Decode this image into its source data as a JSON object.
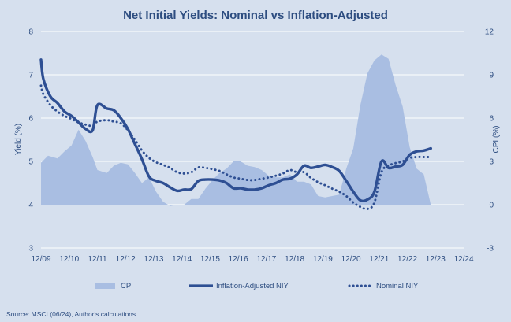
{
  "chart_data": {
    "type": "line",
    "title": "Net Initial Yields: Nominal vs Inflation-Adjusted",
    "source": "Source: MSCI (06/24), Author's calculations",
    "x_tick_labels": [
      "12/09",
      "12/10",
      "12/11",
      "12/12",
      "12/13",
      "12/14",
      "12/15",
      "12/16",
      "12/17",
      "12/18",
      "12/19",
      "12/20",
      "12/21",
      "12/22",
      "12/23",
      "12/24"
    ],
    "xlim": [
      2009.917,
      2024.917
    ],
    "left_axis": {
      "label": "Yield (%)",
      "ylim": [
        3,
        8
      ],
      "ticks": [
        3,
        4,
        5,
        6,
        7,
        8
      ]
    },
    "right_axis": {
      "label": "CPI (%)",
      "ylim": [
        -3,
        12
      ],
      "ticks": [
        -3,
        0,
        3,
        6,
        9,
        12
      ]
    },
    "legend": {
      "cpi": "CPI",
      "real": "Inflation-Adjusted NIY",
      "nominal": "Nominal NIY"
    },
    "colors": {
      "cpi": "#a9bee2",
      "real": "#2e4f93",
      "nominal": "#2e4f93",
      "text": "#2d4d80",
      "gridline": "#ffffff"
    },
    "series": [
      {
        "name": "CPI",
        "kind": "area",
        "axis": "right",
        "x": [
          2009.917,
          2010.167,
          2010.5,
          2010.75,
          2011.0,
          2011.25,
          2011.5,
          2011.75,
          2011.917,
          2012.25,
          2012.5,
          2012.75,
          2013.0,
          2013.25,
          2013.5,
          2013.75,
          2014.0,
          2014.25,
          2014.5,
          2014.75,
          2015.0,
          2015.25,
          2015.5,
          2015.75,
          2016.0,
          2016.25,
          2016.5,
          2016.75,
          2017.0,
          2017.25,
          2017.5,
          2017.75,
          2018.0,
          2018.25,
          2018.5,
          2018.75,
          2019.0,
          2019.25,
          2019.5,
          2019.75,
          2020.0,
          2020.25,
          2020.5,
          2020.75,
          2021.0,
          2021.25,
          2021.5,
          2021.75,
          2022.0,
          2022.25,
          2022.5,
          2022.75,
          2023.0,
          2023.25,
          2023.5,
          2023.75
        ],
        "y": [
          2.9,
          3.4,
          3.2,
          3.7,
          4.1,
          5.2,
          4.4,
          3.3,
          2.4,
          2.2,
          2.7,
          2.9,
          2.8,
          2.2,
          1.5,
          1.9,
          0.9,
          0.2,
          -0.1,
          0.0,
          0.0,
          0.4,
          0.4,
          1.1,
          1.7,
          2.2,
          2.5,
          3.0,
          3.0,
          2.7,
          2.6,
          2.4,
          2.0,
          1.9,
          1.9,
          2.1,
          1.6,
          1.6,
          1.4,
          0.6,
          0.5,
          0.6,
          0.7,
          2.5,
          3.9,
          6.9,
          9.1,
          10.0,
          10.4,
          10.1,
          8.3,
          6.8,
          4.0,
          2.5,
          2.1,
          0.0
        ]
      },
      {
        "name": "Inflation-Adjusted NIY",
        "kind": "line",
        "axis": "left",
        "x": [
          2009.917,
          2010.0,
          2010.25,
          2010.5,
          2010.75,
          2011.0,
          2011.25,
          2011.5,
          2011.75,
          2011.917,
          2012.25,
          2012.5,
          2012.75,
          2013.0,
          2013.25,
          2013.5,
          2013.75,
          2014.0,
          2014.25,
          2014.5,
          2014.75,
          2015.0,
          2015.25,
          2015.5,
          2015.75,
          2016.0,
          2016.25,
          2016.5,
          2016.75,
          2017.0,
          2017.25,
          2017.5,
          2017.75,
          2018.0,
          2018.25,
          2018.5,
          2018.75,
          2019.0,
          2019.25,
          2019.5,
          2019.75,
          2020.0,
          2020.25,
          2020.5,
          2020.75,
          2021.0,
          2021.25,
          2021.5,
          2021.75,
          2022.0,
          2022.25,
          2022.5,
          2022.75,
          2023.0,
          2023.25,
          2023.5,
          2023.75
        ],
        "y": [
          7.35,
          6.9,
          6.5,
          6.35,
          6.15,
          6.05,
          5.9,
          5.75,
          5.72,
          6.3,
          6.22,
          6.18,
          6.0,
          5.75,
          5.4,
          5.05,
          4.65,
          4.55,
          4.5,
          4.4,
          4.32,
          4.35,
          4.36,
          4.55,
          4.58,
          4.58,
          4.56,
          4.5,
          4.38,
          4.38,
          4.35,
          4.35,
          4.38,
          4.45,
          4.5,
          4.58,
          4.6,
          4.7,
          4.9,
          4.85,
          4.88,
          4.92,
          4.87,
          4.78,
          4.55,
          4.3,
          4.1,
          4.12,
          4.3,
          5.0,
          4.85,
          4.88,
          4.92,
          5.15,
          5.23,
          5.25,
          5.3
        ]
      },
      {
        "name": "Nominal NIY",
        "kind": "dotted-line",
        "axis": "left",
        "x": [
          2009.917,
          2010.0,
          2010.25,
          2010.5,
          2010.75,
          2011.0,
          2011.25,
          2011.5,
          2011.75,
          2011.917,
          2012.25,
          2012.5,
          2012.75,
          2013.0,
          2013.25,
          2013.5,
          2013.75,
          2014.0,
          2014.25,
          2014.5,
          2014.75,
          2015.0,
          2015.25,
          2015.5,
          2015.75,
          2016.0,
          2016.25,
          2016.5,
          2016.75,
          2017.0,
          2017.25,
          2017.5,
          2017.75,
          2018.0,
          2018.25,
          2018.5,
          2018.75,
          2019.0,
          2019.25,
          2019.5,
          2019.75,
          2020.0,
          2020.25,
          2020.5,
          2020.75,
          2021.0,
          2021.25,
          2021.5,
          2021.75,
          2022.0,
          2022.25,
          2022.5,
          2022.75,
          2023.0,
          2023.25,
          2023.5,
          2023.75
        ],
        "y": [
          6.75,
          6.55,
          6.3,
          6.15,
          6.05,
          5.98,
          5.9,
          5.85,
          5.82,
          5.92,
          5.95,
          5.92,
          5.88,
          5.72,
          5.5,
          5.25,
          5.08,
          4.98,
          4.92,
          4.85,
          4.75,
          4.72,
          4.75,
          4.86,
          4.85,
          4.82,
          4.78,
          4.7,
          4.63,
          4.6,
          4.57,
          4.57,
          4.6,
          4.63,
          4.67,
          4.72,
          4.8,
          4.75,
          4.75,
          4.62,
          4.52,
          4.45,
          4.37,
          4.3,
          4.2,
          4.05,
          3.95,
          3.9,
          4.05,
          4.75,
          4.9,
          4.96,
          5.0,
          5.08,
          5.1,
          5.1,
          5.1
        ]
      }
    ]
  }
}
